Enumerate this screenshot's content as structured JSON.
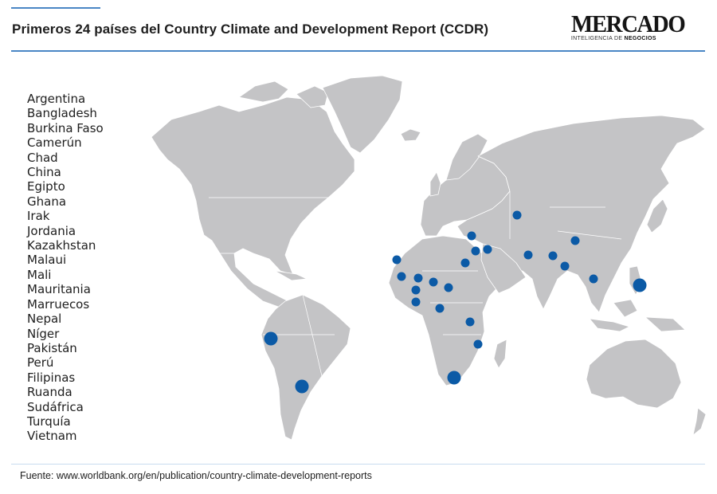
{
  "header": {
    "title": "Primeros 24 países del Country Climate and Development Report (CCDR)"
  },
  "logo": {
    "name": "MERCADO",
    "tagline_prefix": "INTELIGENCIA DE ",
    "tagline_bold": "NEGOCIOS"
  },
  "countries": [
    "Argentina",
    "Bangladesh",
    "Burkina Faso",
    "Camerún",
    "Chad",
    "China",
    "Egipto",
    "Ghana",
    "Irak",
    "Jordania",
    "Kazakhstan",
    "Malaui",
    "Mali",
    "Mauritania",
    "Marruecos",
    "Nepal",
    "Níger",
    "Pakistán",
    "Perú",
    "Filipinas",
    "Ruanda",
    "Sudáfrica",
    "Turquía",
    "Vietnam"
  ],
  "map": {
    "land_color": "#c4c4c6",
    "border_color": "#ffffff",
    "marker_color": "#0b5aa6",
    "markers": [
      {
        "country": "Argentina",
        "size": "large"
      },
      {
        "country": "Bangladesh",
        "size": "small"
      },
      {
        "country": "Burkina Faso",
        "size": "small"
      },
      {
        "country": "Camerún",
        "size": "small"
      },
      {
        "country": "Chad",
        "size": "small"
      },
      {
        "country": "China",
        "size": "small"
      },
      {
        "country": "Egipto",
        "size": "small"
      },
      {
        "country": "Ghana",
        "size": "small"
      },
      {
        "country": "Irak",
        "size": "small"
      },
      {
        "country": "Jordania",
        "size": "small"
      },
      {
        "country": "Kazakhstan",
        "size": "small"
      },
      {
        "country": "Malaui",
        "size": "small"
      },
      {
        "country": "Mali",
        "size": "small"
      },
      {
        "country": "Mauritania",
        "size": "small"
      },
      {
        "country": "Marruecos",
        "size": "small"
      },
      {
        "country": "Nepal",
        "size": "small"
      },
      {
        "country": "Níger",
        "size": "small"
      },
      {
        "country": "Pakistán",
        "size": "small"
      },
      {
        "country": "Perú",
        "size": "large"
      },
      {
        "country": "Filipinas",
        "size": "large"
      },
      {
        "country": "Ruanda",
        "size": "small"
      },
      {
        "country": "Sudáfrica",
        "size": "large"
      },
      {
        "country": "Turquía",
        "size": "small"
      },
      {
        "country": "Vietnam",
        "size": "small"
      }
    ]
  },
  "footer": {
    "source": "Fuente: www.worldbank.org/en/publication/country-climate-development-reports"
  }
}
